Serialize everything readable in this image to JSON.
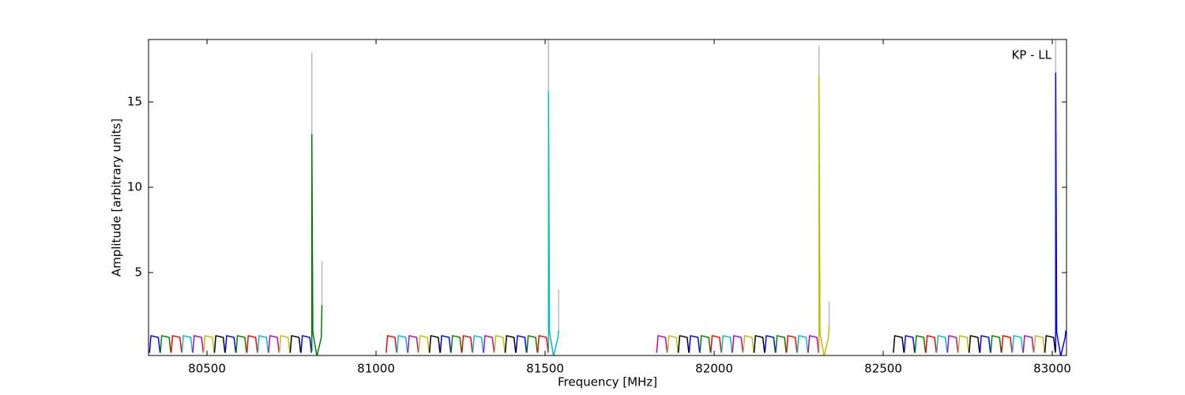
{
  "chart_data": {
    "type": "line",
    "xlabel": "Frequency [MHz]",
    "ylabel": "Amplitude [arbitrary units]",
    "annotation": "KP - LL",
    "xlim": [
      80327,
      83042
    ],
    "ylim": [
      0.14,
      18.66
    ],
    "xticks": [
      80500,
      81000,
      81500,
      82000,
      82500,
      83000
    ],
    "yticks": [
      5,
      10,
      15
    ],
    "series": [
      {
        "color": "#bbbbbb",
        "x": [
          80810,
          80810,
          null,
          80840,
          80840,
          null,
          81510,
          81510,
          null,
          81540,
          81540,
          null,
          82310,
          82310,
          null,
          82340,
          82340,
          null,
          83010,
          83010
        ],
        "values": [
          13.1,
          17.9,
          null,
          3.1,
          5.7,
          null,
          15.6,
          18.7,
          null,
          1.6,
          4.0,
          null,
          16.5,
          18.3,
          null,
          1.9,
          3.3,
          null,
          16.7,
          18.7
        ]
      },
      {
        "color": "#0000ff",
        "x": [
          80330,
          80334,
          80356,
          80361,
          null,
          80554,
          80558,
          80580,
          80585,
          null,
          80778,
          80782,
          80804,
          80809,
          null,
          81190,
          81194,
          81216,
          81221,
          null,
          81414,
          81418,
          81440,
          81445,
          null,
          81926,
          81930,
          81952,
          81957,
          null,
          82150,
          82154,
          82176,
          82181,
          null,
          82562,
          82566,
          82588,
          82593,
          null,
          82786,
          82790,
          82812,
          82817,
          null,
          83010,
          83010,
          83013,
          83025,
          83038,
          83040
        ],
        "values": [
          0.3,
          1.3,
          1.2,
          0.3,
          null,
          0.3,
          1.3,
          1.2,
          0.3,
          null,
          0.3,
          1.3,
          1.2,
          0.3,
          null,
          0.3,
          1.3,
          1.2,
          0.3,
          null,
          0.3,
          1.3,
          1.2,
          0.3,
          null,
          0.3,
          1.3,
          1.2,
          0.3,
          null,
          0.3,
          1.3,
          1.2,
          0.3,
          null,
          0.3,
          1.3,
          1.2,
          0.3,
          null,
          0.3,
          1.3,
          1.2,
          0.3,
          null,
          0.4,
          16.7,
          1.5,
          0.1,
          1.2,
          1.6
        ]
      },
      {
        "color": "#008000",
        "x": [
          80362,
          80366,
          80388,
          80393,
          null,
          80586,
          80590,
          80612,
          80617,
          null,
          80810,
          80810,
          80813,
          80825,
          80838,
          80840,
          null,
          81222,
          81226,
          81248,
          81253,
          null,
          81446,
          81450,
          81472,
          81477,
          null,
          81958,
          81962,
          81984,
          81989,
          null,
          82182,
          82186,
          82208,
          82213,
          null,
          82594,
          82598,
          82620,
          82625,
          null,
          82818,
          82822,
          82844,
          82849
        ],
        "values": [
          0.3,
          1.3,
          1.2,
          0.3,
          null,
          0.3,
          1.3,
          1.2,
          0.3,
          null,
          0.4,
          13.1,
          1.5,
          0.1,
          1.2,
          3.1,
          null,
          0.3,
          1.3,
          1.2,
          0.3,
          null,
          0.3,
          1.3,
          1.2,
          0.3,
          null,
          0.3,
          1.3,
          1.2,
          0.3,
          null,
          0.3,
          1.3,
          1.2,
          0.3,
          null,
          0.3,
          1.3,
          1.2,
          0.3,
          null,
          0.3,
          1.3,
          1.2,
          0.3
        ]
      },
      {
        "color": "#ff0000",
        "x": [
          80394,
          80398,
          80420,
          80425,
          null,
          80618,
          80622,
          80644,
          80649,
          null,
          81030,
          81034,
          81056,
          81061,
          null,
          81254,
          81258,
          81280,
          81285,
          null,
          81478,
          81482,
          81504,
          81509,
          null,
          81990,
          81994,
          82016,
          82021,
          null,
          82214,
          82218,
          82240,
          82245,
          null,
          82626,
          82630,
          82652,
          82657,
          null,
          82850,
          82854,
          82876,
          82881
        ],
        "values": [
          0.3,
          1.3,
          1.2,
          0.3,
          null,
          0.3,
          1.3,
          1.2,
          0.3,
          null,
          0.3,
          1.3,
          1.2,
          0.3,
          null,
          0.3,
          1.3,
          1.2,
          0.3,
          null,
          0.3,
          1.3,
          1.2,
          0.3,
          null,
          0.3,
          1.3,
          1.2,
          0.3,
          null,
          0.3,
          1.3,
          1.2,
          0.3,
          null,
          0.3,
          1.3,
          1.2,
          0.3,
          null,
          0.3,
          1.3,
          1.2,
          0.3
        ]
      },
      {
        "color": "#00bfbf",
        "x": [
          80426,
          80430,
          80452,
          80457,
          null,
          80650,
          80654,
          80676,
          80681,
          null,
          81062,
          81066,
          81088,
          81093,
          null,
          81286,
          81290,
          81312,
          81317,
          null,
          81510,
          81510,
          81513,
          81525,
          81538,
          81540,
          null,
          82022,
          82026,
          82048,
          82053,
          null,
          82246,
          82250,
          82272,
          82277,
          null,
          82658,
          82662,
          82684,
          82689,
          null,
          82882,
          82886,
          82908,
          82913
        ],
        "values": [
          0.3,
          1.3,
          1.2,
          0.3,
          null,
          0.3,
          1.3,
          1.2,
          0.3,
          null,
          0.3,
          1.3,
          1.2,
          0.3,
          null,
          0.3,
          1.3,
          1.2,
          0.3,
          null,
          0.4,
          15.6,
          1.5,
          0.1,
          1.2,
          1.6,
          null,
          0.3,
          1.3,
          1.2,
          0.3,
          null,
          0.3,
          1.3,
          1.2,
          0.3,
          null,
          0.3,
          1.3,
          1.2,
          0.3,
          null,
          0.3,
          1.3,
          1.2,
          0.3
        ]
      },
      {
        "color": "#bf00bf",
        "x": [
          80458,
          80462,
          80484,
          80489,
          null,
          80682,
          80686,
          80708,
          80713,
          null,
          81094,
          81098,
          81120,
          81125,
          null,
          81318,
          81322,
          81344,
          81349,
          null,
          81830,
          81834,
          81856,
          81861,
          null,
          82054,
          82058,
          82080,
          82085,
          null,
          82278,
          82282,
          82304,
          82309,
          null,
          82690,
          82694,
          82716,
          82721,
          null,
          82914,
          82918,
          82940,
          82945
        ],
        "values": [
          0.3,
          1.3,
          1.2,
          0.3,
          null,
          0.3,
          1.3,
          1.2,
          0.3,
          null,
          0.3,
          1.3,
          1.2,
          0.3,
          null,
          0.3,
          1.3,
          1.2,
          0.3,
          null,
          0.3,
          1.3,
          1.2,
          0.3,
          null,
          0.3,
          1.3,
          1.2,
          0.3,
          null,
          0.3,
          1.3,
          1.2,
          0.3,
          null,
          0.3,
          1.3,
          1.2,
          0.3,
          null,
          0.3,
          1.3,
          1.2,
          0.3
        ]
      },
      {
        "color": "#bfbf00",
        "x": [
          80490,
          80494,
          80516,
          80521,
          null,
          80714,
          80718,
          80740,
          80745,
          null,
          81126,
          81130,
          81152,
          81157,
          null,
          81350,
          81354,
          81376,
          81381,
          null,
          81862,
          81866,
          81888,
          81893,
          null,
          82086,
          82090,
          82112,
          82117,
          null,
          82310,
          82310,
          82313,
          82325,
          82338,
          82340,
          null,
          82722,
          82726,
          82748,
          82753,
          null,
          82946,
          82950,
          82972,
          82977
        ],
        "values": [
          0.3,
          1.3,
          1.2,
          0.3,
          null,
          0.3,
          1.3,
          1.2,
          0.3,
          null,
          0.3,
          1.3,
          1.2,
          0.3,
          null,
          0.3,
          1.3,
          1.2,
          0.3,
          null,
          0.3,
          1.3,
          1.2,
          0.3,
          null,
          0.3,
          1.3,
          1.2,
          0.3,
          null,
          0.4,
          16.5,
          1.5,
          0.1,
          1.2,
          1.9,
          null,
          0.3,
          1.3,
          1.2,
          0.3,
          null,
          0.3,
          1.3,
          1.2,
          0.3
        ]
      },
      {
        "color": "#000000",
        "x": [
          80522,
          80526,
          80548,
          80553,
          null,
          80746,
          80750,
          80772,
          80777,
          null,
          81158,
          81162,
          81184,
          81189,
          null,
          81382,
          81386,
          81408,
          81413,
          null,
          81894,
          81898,
          81920,
          81925,
          null,
          82118,
          82122,
          82144,
          82149,
          null,
          82530,
          82534,
          82556,
          82561,
          null,
          82754,
          82758,
          82780,
          82785,
          null,
          82978,
          82982,
          83004,
          83009
        ],
        "values": [
          0.3,
          1.3,
          1.2,
          0.3,
          null,
          0.3,
          1.3,
          1.2,
          0.3,
          null,
          0.3,
          1.3,
          1.2,
          0.3,
          null,
          0.3,
          1.3,
          1.2,
          0.3,
          null,
          0.3,
          1.3,
          1.2,
          0.3,
          null,
          0.3,
          1.3,
          1.2,
          0.3,
          null,
          0.3,
          1.3,
          1.2,
          0.3,
          null,
          0.3,
          1.3,
          1.2,
          0.3,
          null,
          0.3,
          1.3,
          1.2,
          0.3
        ]
      }
    ]
  }
}
